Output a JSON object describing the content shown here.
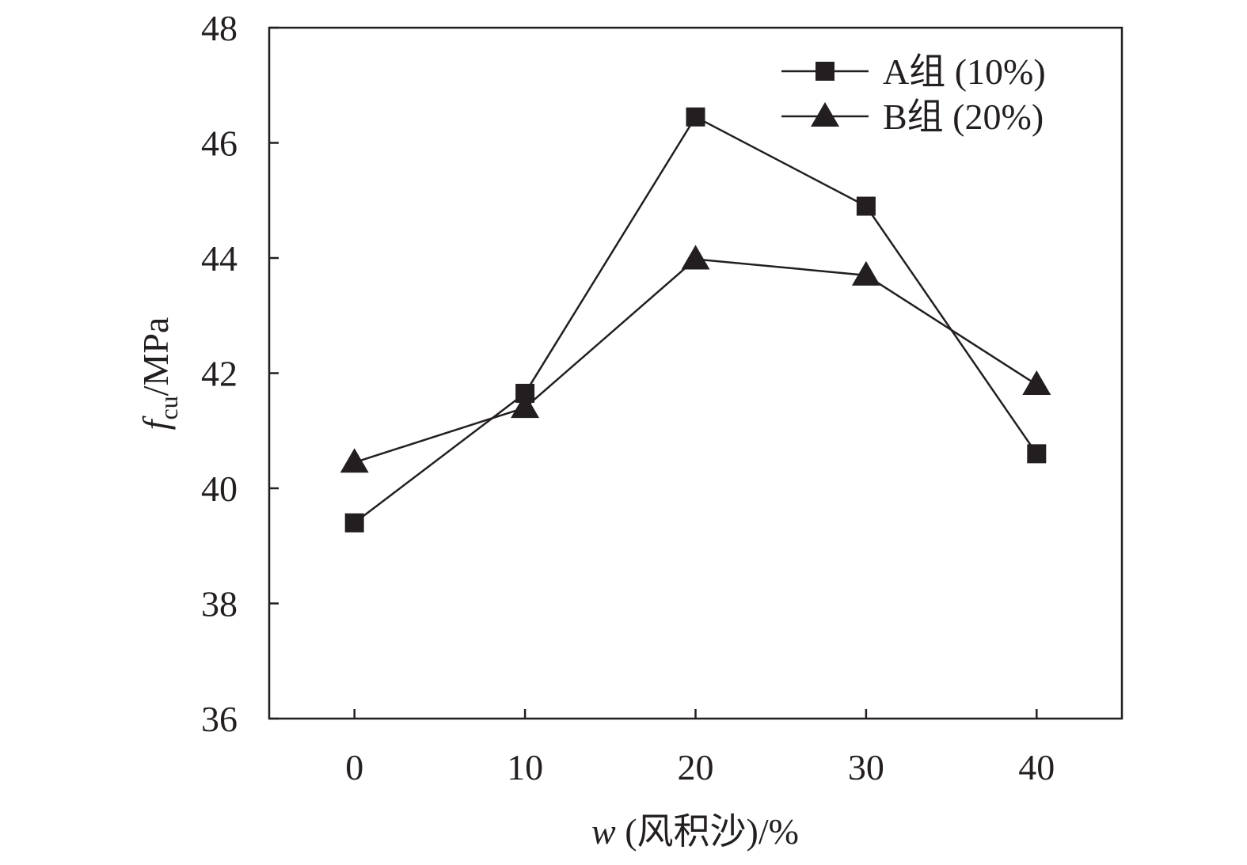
{
  "chart_data": {
    "type": "line",
    "title": "",
    "xlabel": {
      "var": "w",
      "rest": " (风积沙)/%"
    },
    "ylabel": {
      "main": "f",
      "sub": "cu",
      "rest": "/MPa"
    },
    "x": [
      0,
      10,
      20,
      30,
      40
    ],
    "xlim": [
      -5,
      45
    ],
    "ylim": [
      36,
      48
    ],
    "xticks": [
      "0",
      "10",
      "20",
      "30",
      "40"
    ],
    "yticks": [
      "36",
      "38",
      "40",
      "42",
      "44",
      "46",
      "48"
    ],
    "grid": false,
    "legend_position": "top-right",
    "series": [
      {
        "name": "A组 (10%)",
        "marker": "square",
        "color": "#231f20",
        "values": [
          39.4,
          41.65,
          46.45,
          44.9,
          40.6
        ]
      },
      {
        "name": "B组 (20%)",
        "marker": "triangle",
        "color": "#231f20",
        "values": [
          40.45,
          41.4,
          43.98,
          43.7,
          41.8
        ]
      }
    ]
  }
}
